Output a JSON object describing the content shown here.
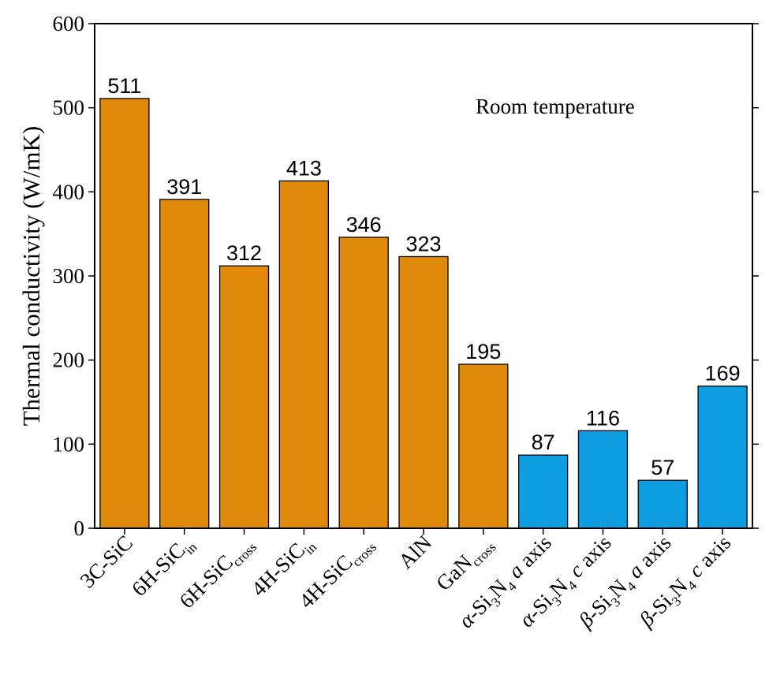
{
  "chart_data": {
    "type": "bar",
    "categories": [
      {
        "text": "3C-SiC",
        "sub": "",
        "prefix": "",
        "italic": ""
      },
      {
        "text": "6H-SiC",
        "sub": "in",
        "prefix": "",
        "italic": ""
      },
      {
        "text": "6H-SiC",
        "sub": "cross",
        "prefix": "",
        "italic": ""
      },
      {
        "text": "4H-SiC",
        "sub": "in",
        "prefix": "",
        "italic": ""
      },
      {
        "text": "4H-SiC",
        "sub": "cross",
        "prefix": "",
        "italic": ""
      },
      {
        "text": "AlN",
        "sub": "",
        "prefix": "",
        "italic": ""
      },
      {
        "text": "GaN",
        "sub": "cross",
        "prefix": "",
        "italic": ""
      },
      {
        "text": "Si3N4",
        "sub": "",
        "prefix": "α",
        "italic": "a",
        "suffix": "axis"
      },
      {
        "text": "Si3N4",
        "sub": "",
        "prefix": "α",
        "italic": "c",
        "suffix": "axis"
      },
      {
        "text": "Si3N4",
        "sub": "",
        "prefix": "β",
        "italic": "a",
        "suffix": "axis"
      },
      {
        "text": "Si3N4",
        "sub": "",
        "prefix": "β",
        "italic": "c",
        "suffix": "axis"
      }
    ],
    "values": [
      511,
      391,
      312,
      413,
      346,
      323,
      195,
      87,
      116,
      57,
      169
    ],
    "colors": [
      "#e08a0b",
      "#e08a0b",
      "#e08a0b",
      "#e08a0b",
      "#e08a0b",
      "#e08a0b",
      "#e08a0b",
      "#0d9de0",
      "#0d9de0",
      "#0d9de0",
      "#0d9de0"
    ],
    "ylabel": "Thermal conductivity (W/mK)",
    "ylim": [
      0,
      600
    ],
    "yticks": [
      0,
      100,
      200,
      300,
      400,
      500,
      600
    ],
    "annotation": "Room temperature",
    "grid": false
  }
}
